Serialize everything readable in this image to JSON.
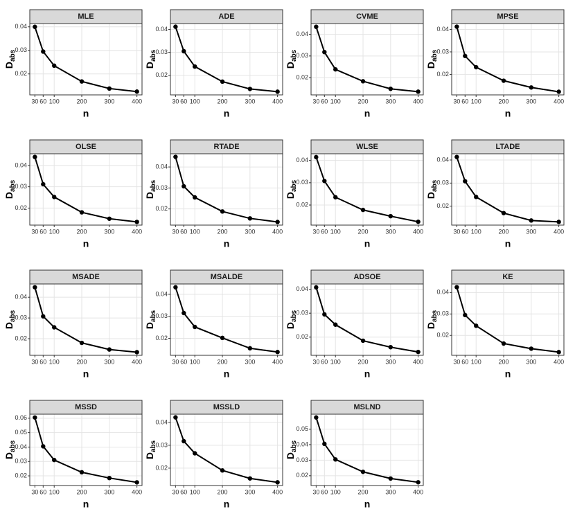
{
  "chart_data": [
    {
      "type": "line",
      "title": "MLE",
      "x": [
        30,
        60,
        100,
        200,
        300,
        400
      ],
      "values": [
        0.04,
        0.0295,
        0.0235,
        0.0168,
        0.0138,
        0.0125
      ],
      "xlim": [
        11.5,
        418.5
      ],
      "ylim": [
        0.0111,
        0.0414
      ],
      "xticks": [
        30,
        60,
        100,
        200,
        300,
        400
      ],
      "yticks": [
        0.02,
        0.03,
        0.04
      ],
      "xlabel": "n",
      "ylabel": "D",
      "ylabel_sub": "abs",
      "color": "#000000",
      "grid": true
    },
    {
      "type": "line",
      "title": "ADE",
      "x": [
        30,
        60,
        100,
        200,
        300,
        400
      ],
      "values": [
        0.0412,
        0.0305,
        0.0238,
        0.0172,
        0.014,
        0.0128
      ],
      "xlim": [
        11.5,
        418.5
      ],
      "ylim": [
        0.0114,
        0.0426
      ],
      "xticks": [
        30,
        60,
        100,
        200,
        300,
        400
      ],
      "yticks": [
        0.02,
        0.03,
        0.04
      ],
      "xlabel": "n",
      "ylabel": "D",
      "ylabel_sub": "abs",
      "color": "#000000",
      "grid": true
    },
    {
      "type": "line",
      "title": "CVME",
      "x": [
        30,
        60,
        100,
        200,
        300,
        400
      ],
      "values": [
        0.0435,
        0.0318,
        0.0238,
        0.0183,
        0.0148,
        0.0135
      ],
      "xlim": [
        11.5,
        418.5
      ],
      "ylim": [
        0.012,
        0.045
      ],
      "xticks": [
        30,
        60,
        100,
        200,
        300,
        400
      ],
      "yticks": [
        0.02,
        0.03,
        0.04
      ],
      "xlabel": "n",
      "ylabel": "D",
      "ylabel_sub": "abs",
      "color": "#000000",
      "grid": true
    },
    {
      "type": "line",
      "title": "MPSE",
      "x": [
        30,
        60,
        100,
        200,
        300,
        400
      ],
      "values": [
        0.0412,
        0.0282,
        0.0232,
        0.0172,
        0.0142,
        0.0123
      ],
      "xlim": [
        11.5,
        418.5
      ],
      "ylim": [
        0.0109,
        0.0426
      ],
      "xticks": [
        30,
        60,
        100,
        200,
        300,
        400
      ],
      "yticks": [
        0.02,
        0.03,
        0.04
      ],
      "xlabel": "n",
      "ylabel": "D",
      "ylabel_sub": "abs",
      "color": "#000000",
      "grid": true
    },
    {
      "type": "line",
      "title": "OLSE",
      "x": [
        30,
        60,
        100,
        200,
        300,
        400
      ],
      "values": [
        0.044,
        0.0312,
        0.0252,
        0.018,
        0.015,
        0.0135
      ],
      "xlim": [
        11.5,
        418.5
      ],
      "ylim": [
        0.012,
        0.0455
      ],
      "xticks": [
        30,
        60,
        100,
        200,
        300,
        400
      ],
      "yticks": [
        0.02,
        0.03,
        0.04
      ],
      "xlabel": "n",
      "ylabel": "D",
      "ylabel_sub": "abs",
      "color": "#000000",
      "grid": true
    },
    {
      "type": "line",
      "title": "RTADE",
      "x": [
        30,
        60,
        100,
        200,
        300,
        400
      ],
      "values": [
        0.0448,
        0.0308,
        0.0255,
        0.0188,
        0.0155,
        0.0138
      ],
      "xlim": [
        11.5,
        418.5
      ],
      "ylim": [
        0.0123,
        0.0463
      ],
      "xticks": [
        30,
        60,
        100,
        200,
        300,
        400
      ],
      "yticks": [
        0.02,
        0.03,
        0.04
      ],
      "xlabel": "n",
      "ylabel": "D",
      "ylabel_sub": "abs",
      "color": "#000000",
      "grid": true
    },
    {
      "type": "line",
      "title": "WLSE",
      "x": [
        30,
        60,
        100,
        200,
        300,
        400
      ],
      "values": [
        0.0415,
        0.0308,
        0.0235,
        0.0178,
        0.015,
        0.0125
      ],
      "xlim": [
        11.5,
        418.5
      ],
      "ylim": [
        0.011,
        0.043
      ],
      "xticks": [
        30,
        60,
        100,
        200,
        300,
        400
      ],
      "yticks": [
        0.02,
        0.03,
        0.04
      ],
      "xlabel": "n",
      "ylabel": "D",
      "ylabel_sub": "abs",
      "color": "#000000",
      "grid": true
    },
    {
      "type": "line",
      "title": "LTADE",
      "x": [
        30,
        60,
        100,
        200,
        300,
        400
      ],
      "values": [
        0.0413,
        0.0308,
        0.024,
        0.017,
        0.0138,
        0.0132
      ],
      "xlim": [
        11.5,
        418.5
      ],
      "ylim": [
        0.0118,
        0.0427
      ],
      "xticks": [
        30,
        60,
        100,
        200,
        300,
        400
      ],
      "yticks": [
        0.02,
        0.03,
        0.04
      ],
      "xlabel": "n",
      "ylabel": "D",
      "ylabel_sub": "abs",
      "color": "#000000",
      "grid": true
    },
    {
      "type": "line",
      "title": "MSADE",
      "x": [
        30,
        60,
        100,
        200,
        300,
        400
      ],
      "values": [
        0.0448,
        0.0308,
        0.0255,
        0.018,
        0.0148,
        0.0135
      ],
      "xlim": [
        11.5,
        418.5
      ],
      "ylim": [
        0.012,
        0.0464
      ],
      "xticks": [
        30,
        60,
        100,
        200,
        300,
        400
      ],
      "yticks": [
        0.02,
        0.03,
        0.04
      ],
      "xlabel": "n",
      "ylabel": "D",
      "ylabel_sub": "abs",
      "color": "#000000",
      "grid": true
    },
    {
      "type": "line",
      "title": "MSALDE",
      "x": [
        30,
        60,
        100,
        200,
        300,
        400
      ],
      "values": [
        0.0432,
        0.0315,
        0.0252,
        0.0202,
        0.0155,
        0.0138
      ],
      "xlim": [
        11.5,
        418.5
      ],
      "ylim": [
        0.0123,
        0.0447
      ],
      "xticks": [
        30,
        60,
        100,
        200,
        300,
        400
      ],
      "yticks": [
        0.02,
        0.03,
        0.04
      ],
      "xlabel": "n",
      "ylabel": "D",
      "ylabel_sub": "abs",
      "color": "#000000",
      "grid": true
    },
    {
      "type": "line",
      "title": "ADSOE",
      "x": [
        30,
        60,
        100,
        200,
        300,
        400
      ],
      "values": [
        0.0408,
        0.0295,
        0.0252,
        0.0185,
        0.0158,
        0.0138
      ],
      "xlim": [
        11.5,
        418.5
      ],
      "ylim": [
        0.0124,
        0.0422
      ],
      "xticks": [
        30,
        60,
        100,
        200,
        300,
        400
      ],
      "yticks": [
        0.02,
        0.03,
        0.04
      ],
      "xlabel": "n",
      "ylabel": "D",
      "ylabel_sub": "abs",
      "color": "#000000",
      "grid": true
    },
    {
      "type": "line",
      "title": "KE",
      "x": [
        30,
        60,
        100,
        200,
        300,
        400
      ],
      "values": [
        0.0425,
        0.0295,
        0.0245,
        0.0162,
        0.0138,
        0.0122
      ],
      "xlim": [
        11.5,
        418.5
      ],
      "ylim": [
        0.0107,
        0.044
      ],
      "xticks": [
        30,
        60,
        100,
        200,
        300,
        400
      ],
      "yticks": [
        0.02,
        0.03,
        0.04
      ],
      "xlabel": "n",
      "ylabel": "D",
      "ylabel_sub": "abs",
      "color": "#000000",
      "grid": true
    },
    {
      "type": "line",
      "title": "MSSD",
      "x": [
        30,
        60,
        100,
        200,
        300,
        400
      ],
      "values": [
        0.0605,
        0.0405,
        0.031,
        0.0225,
        0.0185,
        0.0155
      ],
      "xlim": [
        11.5,
        418.5
      ],
      "ylim": [
        0.0133,
        0.0628
      ],
      "xticks": [
        30,
        60,
        100,
        200,
        300,
        400
      ],
      "yticks": [
        0.02,
        0.03,
        0.04,
        0.05,
        0.06
      ],
      "xlabel": "n",
      "ylabel": "D",
      "ylabel_sub": "abs",
      "color": "#000000",
      "grid": true
    },
    {
      "type": "line",
      "title": "MSSLD",
      "x": [
        30,
        60,
        100,
        200,
        300,
        400
      ],
      "values": [
        0.0422,
        0.0318,
        0.0265,
        0.019,
        0.0155,
        0.0138
      ],
      "xlim": [
        11.5,
        418.5
      ],
      "ylim": [
        0.0124,
        0.0436
      ],
      "xticks": [
        30,
        60,
        100,
        200,
        300,
        400
      ],
      "yticks": [
        0.02,
        0.03,
        0.04
      ],
      "xlabel": "n",
      "ylabel": "D",
      "ylabel_sub": "abs",
      "color": "#000000",
      "grid": true
    },
    {
      "type": "line",
      "title": "MSLND",
      "x": [
        30,
        60,
        100,
        200,
        300,
        400
      ],
      "values": [
        0.0575,
        0.0405,
        0.0305,
        0.0225,
        0.0182,
        0.0158
      ],
      "xlim": [
        11.5,
        418.5
      ],
      "ylim": [
        0.0137,
        0.0596
      ],
      "xticks": [
        30,
        60,
        100,
        200,
        300,
        400
      ],
      "yticks": [
        0.02,
        0.03,
        0.04,
        0.05
      ],
      "xlabel": "n",
      "ylabel": "D",
      "ylabel_sub": "abs",
      "color": "#000000",
      "grid": true
    }
  ]
}
